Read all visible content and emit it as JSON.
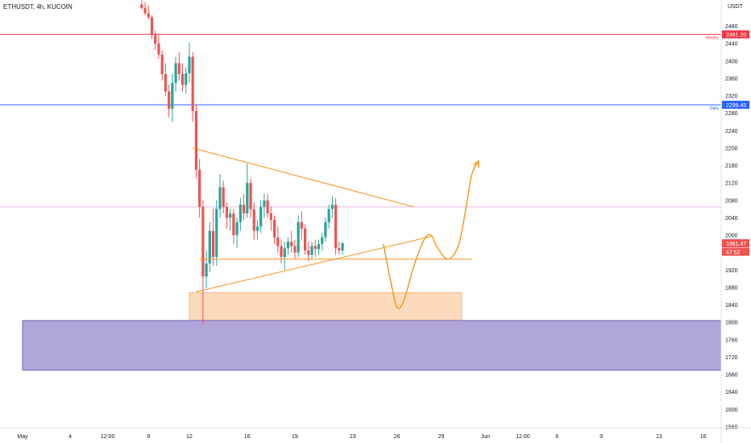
{
  "header": {
    "symbol_info": "ETHUSDT, 4h, KUCOIN",
    "unit": "USDT"
  },
  "chart_data": {
    "type": "candlestick",
    "symbol": "ETHUSDT",
    "timeframe": "4h",
    "exchange": "KUCOIN",
    "ylim": [
      1550,
      2520
    ],
    "y_ticks": [
      1560,
      1600,
      1640,
      1680,
      1720,
      1760,
      1800,
      1840,
      1880,
      1920,
      2000,
      2040,
      2080,
      2120,
      2160,
      2200,
      2240,
      2280,
      2320,
      2360,
      2400,
      2440,
      2480
    ],
    "x_ticks": [
      {
        "label": "May",
        "i": 0
      },
      {
        "label": "4",
        "i": 14
      },
      {
        "label": "12:00",
        "i": 25
      },
      {
        "label": "9",
        "i": 37
      },
      {
        "label": "12",
        "i": 49
      },
      {
        "label": "16",
        "i": 66
      },
      {
        "label": "19",
        "i": 80
      },
      {
        "label": "23",
        "i": 97
      },
      {
        "label": "26",
        "i": 110
      },
      {
        "label": "29",
        "i": 123
      },
      {
        "label": "Jun",
        "i": 136
      },
      {
        "label": "12:00",
        "i": 147
      },
      {
        "label": "6",
        "i": 157
      },
      {
        "label": "9",
        "i": 170
      },
      {
        "label": "13",
        "i": 187
      },
      {
        "label": "16",
        "i": 200
      }
    ],
    "colors": {
      "up": "#26a69a",
      "down": "#ef5350",
      "accent": "#f7931a"
    },
    "candles_start_index": 35,
    "candles": [
      [
        2530,
        2545,
        2518,
        2522
      ],
      [
        2522,
        2535,
        2505,
        2510
      ],
      [
        2510,
        2528,
        2495,
        2500
      ],
      [
        2500,
        2505,
        2450,
        2460
      ],
      [
        2460,
        2470,
        2425,
        2440
      ],
      [
        2440,
        2462,
        2405,
        2415
      ],
      [
        2415,
        2425,
        2355,
        2370
      ],
      [
        2370,
        2395,
        2320,
        2330
      ],
      [
        2330,
        2345,
        2270,
        2290
      ],
      [
        2290,
        2370,
        2260,
        2350
      ],
      [
        2350,
        2410,
        2330,
        2395
      ],
      [
        2395,
        2420,
        2355,
        2370
      ],
      [
        2370,
        2395,
        2330,
        2345
      ],
      [
        2345,
        2385,
        2325,
        2372
      ],
      [
        2372,
        2442,
        2350,
        2410
      ],
      [
        2410,
        2420,
        2260,
        2285
      ],
      [
        2285,
        2300,
        2130,
        2150
      ],
      [
        2150,
        2175,
        2040,
        2065
      ],
      [
        2065,
        2080,
        1795,
        1905
      ],
      [
        1905,
        1965,
        1878,
        1935
      ],
      [
        1935,
        2030,
        1915,
        2010
      ],
      [
        2010,
        2060,
        1930,
        1950
      ],
      [
        1950,
        2080,
        1930,
        2060
      ],
      [
        2060,
        2140,
        2040,
        2110
      ],
      [
        2110,
        2125,
        2050,
        2065
      ],
      [
        2065,
        2075,
        2015,
        2040
      ],
      [
        2040,
        2060,
        2010,
        2050
      ],
      [
        2050,
        2060,
        1980,
        2000
      ],
      [
        2000,
        2040,
        1970,
        2030
      ],
      [
        2030,
        2085,
        2010,
        2070
      ],
      [
        2070,
        2095,
        2035,
        2050
      ],
      [
        2050,
        2165,
        2040,
        2120
      ],
      [
        2120,
        2130,
        2040,
        2060
      ],
      [
        2060,
        2075,
        1990,
        2010
      ],
      [
        2010,
        2035,
        1990,
        2020
      ],
      [
        2020,
        2080,
        2005,
        2065
      ],
      [
        2065,
        2095,
        2040,
        2080
      ],
      [
        2080,
        2095,
        2040,
        2050
      ],
      [
        2050,
        2065,
        2010,
        2035
      ],
      [
        2035,
        2045,
        1980,
        1995
      ],
      [
        1995,
        2020,
        1960,
        1975
      ],
      [
        1975,
        1990,
        1935,
        1950
      ],
      [
        1950,
        1985,
        1920,
        1970
      ],
      [
        1970,
        1995,
        1955,
        1985
      ],
      [
        1985,
        2010,
        1960,
        1975
      ],
      [
        1975,
        1990,
        1945,
        1960
      ],
      [
        1960,
        2045,
        1950,
        2030
      ],
      [
        2030,
        2055,
        1990,
        2015
      ],
      [
        2015,
        2025,
        1955,
        1965
      ],
      [
        1965,
        1985,
        1940,
        1955
      ],
      [
        1955,
        1985,
        1945,
        1975
      ],
      [
        1975,
        1990,
        1950,
        1968
      ],
      [
        1968,
        1990,
        1955,
        1980
      ],
      [
        1980,
        2005,
        1965,
        1995
      ],
      [
        1995,
        2040,
        1985,
        2030
      ],
      [
        2030,
        2070,
        2015,
        2060
      ],
      [
        2060,
        2090,
        2040,
        2070
      ],
      [
        2070,
        2085,
        1955,
        1970
      ],
      [
        1970,
        1985,
        1955,
        1965
      ],
      [
        1965,
        1985,
        1955,
        1981.47
      ]
    ],
    "horizontal_levels": [
      {
        "price": 2461.2,
        "color": "#f23645",
        "tag": "Weekly"
      },
      {
        "price": 2299.45,
        "color": "#2962ff",
        "tag": "Daily"
      },
      {
        "price": 2065,
        "color": "#e1bee7",
        "tag": ""
      }
    ],
    "price_tags": [
      {
        "label": "2461.20",
        "price": 2461.2,
        "color": "#f23645"
      },
      {
        "label": "2299.45",
        "price": 2299.45,
        "color": "#2962ff"
      },
      {
        "label": "1981.47",
        "price": 1981.47,
        "color": "#ef5350"
      },
      {
        "label": "47:52",
        "price": 1962,
        "color": "#ef5350"
      }
    ],
    "zones": [
      {
        "name": "demand",
        "y_top": 1868,
        "y_bottom": 1800,
        "i_start": 49,
        "i_end": 129,
        "color": "#fbd3b0"
      },
      {
        "name": "support",
        "y_top": 1804,
        "y_bottom": 1690,
        "i_start": 0,
        "i_end": 210,
        "color": "#b0a6d8"
      }
    ],
    "pattern_lines": [
      {
        "p1": [
          50,
          2200
        ],
        "p2": [
          115,
          2065
        ]
      },
      {
        "p1": [
          51,
          1870
        ],
        "p2": [
          120,
          1997
        ]
      },
      {
        "p1": [
          52,
          1945
        ],
        "p2": [
          132,
          1945
        ]
      }
    ],
    "projection": [
      [
        106,
        1980
      ],
      [
        108,
        1900
      ],
      [
        110,
        1835
      ],
      [
        112,
        1850
      ],
      [
        115,
        1930
      ],
      [
        118,
        1990
      ],
      [
        120,
        2000
      ],
      [
        122,
        1970
      ],
      [
        125,
        1945
      ],
      [
        128,
        1975
      ],
      [
        130,
        2050
      ],
      [
        132,
        2140
      ],
      [
        134,
        2170
      ]
    ]
  }
}
